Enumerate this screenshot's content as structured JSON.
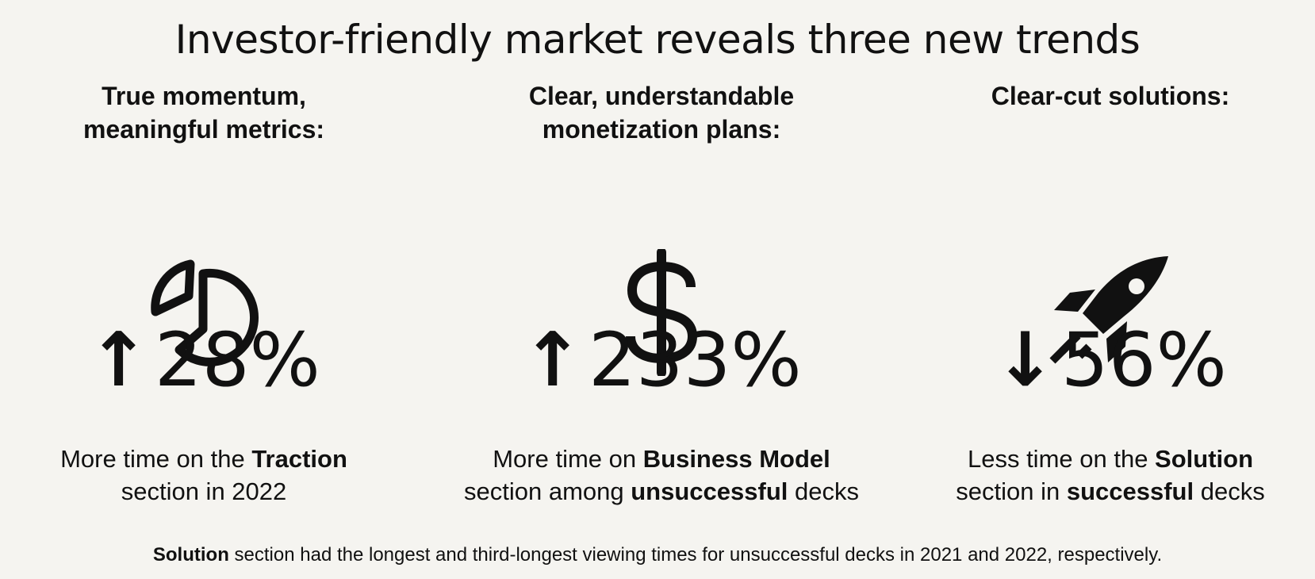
{
  "title": "Investor-friendly market reveals three new trends",
  "columns": [
    {
      "heading_line1": "True momentum,",
      "heading_line2": "meaningful metrics:",
      "icon": "pie-chart-icon",
      "arrow": "↑",
      "stat": "28%",
      "desc_line1_pre": "More time on the ",
      "desc_line1_bold": "Traction",
      "desc_line2_pre": "section in 2022",
      "desc_line2_bold": "",
      "desc_line2_post": ""
    },
    {
      "heading_line1": "Clear, understandable",
      "heading_line2": "monetization plans:",
      "icon": "dollar-sign-icon",
      "arrow": "↑",
      "stat": "233%",
      "desc_line1_pre": "More time on ",
      "desc_line1_bold": "Business Model",
      "desc_line2_pre": "section among ",
      "desc_line2_bold": "unsuccessful",
      "desc_line2_post": " decks"
    },
    {
      "heading_line1": "Clear-cut solutions:",
      "heading_line2": "",
      "icon": "rocket-icon",
      "arrow": "↓",
      "stat": "56%",
      "desc_line1_pre": "Less time on the ",
      "desc_line1_bold": "Solution",
      "desc_line2_pre": "section in ",
      "desc_line2_bold": "successful",
      "desc_line2_post": " decks"
    }
  ],
  "footnote": {
    "bold": "Solution",
    "rest": " section had the longest and third-longest viewing times for unsuccessful decks in 2021 and 2022, respectively."
  },
  "colors": {
    "background": "#f5f4f0",
    "text": "#111111"
  }
}
